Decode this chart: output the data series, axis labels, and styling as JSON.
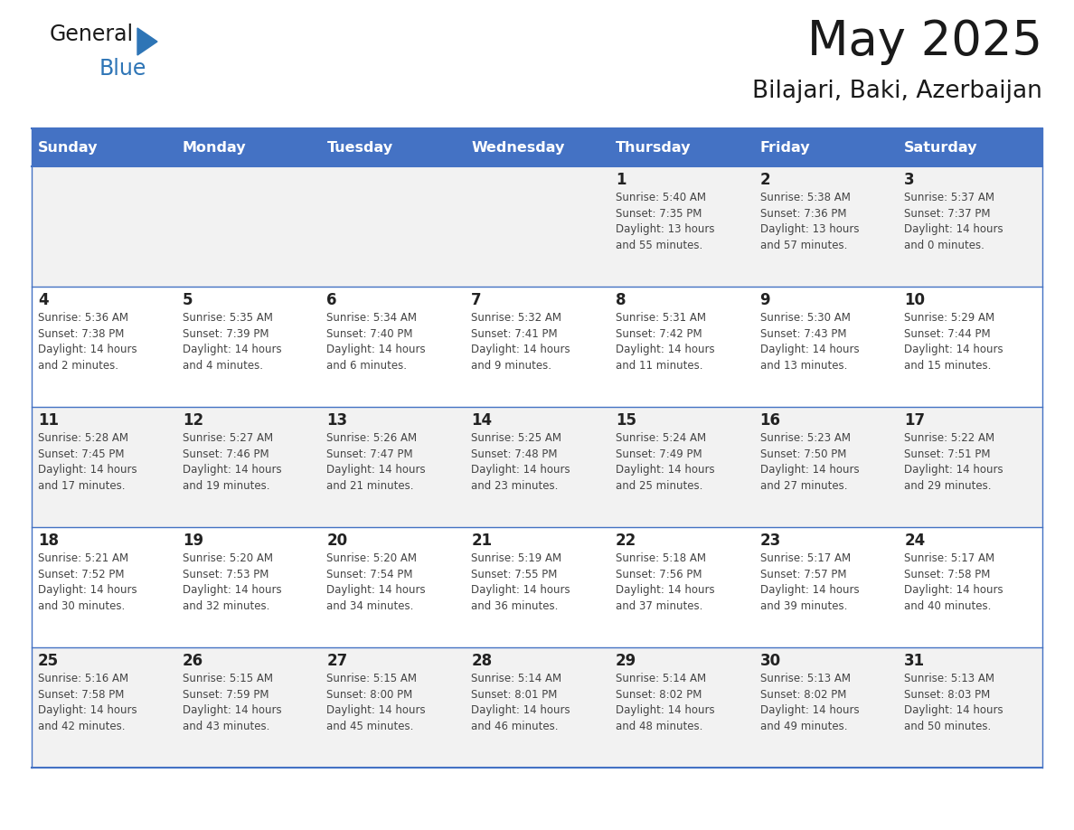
{
  "title": "May 2025",
  "subtitle": "Bilajari, Baki, Azerbaijan",
  "days_of_week": [
    "Sunday",
    "Monday",
    "Tuesday",
    "Wednesday",
    "Thursday",
    "Friday",
    "Saturday"
  ],
  "header_bg": "#4472C4",
  "header_text_color": "#FFFFFF",
  "cell_bg_odd": "#F2F2F2",
  "cell_bg_even": "#FFFFFF",
  "day_number_color": "#222222",
  "cell_text_color": "#444444",
  "grid_line_color": "#4472C4",
  "grid_line_color_inner": "#5A5A8A",
  "title_color": "#1a1a1a",
  "subtitle_color": "#1a1a1a",
  "logo_general_color": "#1a1a1a",
  "logo_blue_color": "#2E75B6",
  "logo_triangle_color": "#2E75B6",
  "calendar_data": [
    [
      {
        "day": "",
        "info": ""
      },
      {
        "day": "",
        "info": ""
      },
      {
        "day": "",
        "info": ""
      },
      {
        "day": "",
        "info": ""
      },
      {
        "day": "1",
        "info": "Sunrise: 5:40 AM\nSunset: 7:35 PM\nDaylight: 13 hours\nand 55 minutes."
      },
      {
        "day": "2",
        "info": "Sunrise: 5:38 AM\nSunset: 7:36 PM\nDaylight: 13 hours\nand 57 minutes."
      },
      {
        "day": "3",
        "info": "Sunrise: 5:37 AM\nSunset: 7:37 PM\nDaylight: 14 hours\nand 0 minutes."
      }
    ],
    [
      {
        "day": "4",
        "info": "Sunrise: 5:36 AM\nSunset: 7:38 PM\nDaylight: 14 hours\nand 2 minutes."
      },
      {
        "day": "5",
        "info": "Sunrise: 5:35 AM\nSunset: 7:39 PM\nDaylight: 14 hours\nand 4 minutes."
      },
      {
        "day": "6",
        "info": "Sunrise: 5:34 AM\nSunset: 7:40 PM\nDaylight: 14 hours\nand 6 minutes."
      },
      {
        "day": "7",
        "info": "Sunrise: 5:32 AM\nSunset: 7:41 PM\nDaylight: 14 hours\nand 9 minutes."
      },
      {
        "day": "8",
        "info": "Sunrise: 5:31 AM\nSunset: 7:42 PM\nDaylight: 14 hours\nand 11 minutes."
      },
      {
        "day": "9",
        "info": "Sunrise: 5:30 AM\nSunset: 7:43 PM\nDaylight: 14 hours\nand 13 minutes."
      },
      {
        "day": "10",
        "info": "Sunrise: 5:29 AM\nSunset: 7:44 PM\nDaylight: 14 hours\nand 15 minutes."
      }
    ],
    [
      {
        "day": "11",
        "info": "Sunrise: 5:28 AM\nSunset: 7:45 PM\nDaylight: 14 hours\nand 17 minutes."
      },
      {
        "day": "12",
        "info": "Sunrise: 5:27 AM\nSunset: 7:46 PM\nDaylight: 14 hours\nand 19 minutes."
      },
      {
        "day": "13",
        "info": "Sunrise: 5:26 AM\nSunset: 7:47 PM\nDaylight: 14 hours\nand 21 minutes."
      },
      {
        "day": "14",
        "info": "Sunrise: 5:25 AM\nSunset: 7:48 PM\nDaylight: 14 hours\nand 23 minutes."
      },
      {
        "day": "15",
        "info": "Sunrise: 5:24 AM\nSunset: 7:49 PM\nDaylight: 14 hours\nand 25 minutes."
      },
      {
        "day": "16",
        "info": "Sunrise: 5:23 AM\nSunset: 7:50 PM\nDaylight: 14 hours\nand 27 minutes."
      },
      {
        "day": "17",
        "info": "Sunrise: 5:22 AM\nSunset: 7:51 PM\nDaylight: 14 hours\nand 29 minutes."
      }
    ],
    [
      {
        "day": "18",
        "info": "Sunrise: 5:21 AM\nSunset: 7:52 PM\nDaylight: 14 hours\nand 30 minutes."
      },
      {
        "day": "19",
        "info": "Sunrise: 5:20 AM\nSunset: 7:53 PM\nDaylight: 14 hours\nand 32 minutes."
      },
      {
        "day": "20",
        "info": "Sunrise: 5:20 AM\nSunset: 7:54 PM\nDaylight: 14 hours\nand 34 minutes."
      },
      {
        "day": "21",
        "info": "Sunrise: 5:19 AM\nSunset: 7:55 PM\nDaylight: 14 hours\nand 36 minutes."
      },
      {
        "day": "22",
        "info": "Sunrise: 5:18 AM\nSunset: 7:56 PM\nDaylight: 14 hours\nand 37 minutes."
      },
      {
        "day": "23",
        "info": "Sunrise: 5:17 AM\nSunset: 7:57 PM\nDaylight: 14 hours\nand 39 minutes."
      },
      {
        "day": "24",
        "info": "Sunrise: 5:17 AM\nSunset: 7:58 PM\nDaylight: 14 hours\nand 40 minutes."
      }
    ],
    [
      {
        "day": "25",
        "info": "Sunrise: 5:16 AM\nSunset: 7:58 PM\nDaylight: 14 hours\nand 42 minutes."
      },
      {
        "day": "26",
        "info": "Sunrise: 5:15 AM\nSunset: 7:59 PM\nDaylight: 14 hours\nand 43 minutes."
      },
      {
        "day": "27",
        "info": "Sunrise: 5:15 AM\nSunset: 8:00 PM\nDaylight: 14 hours\nand 45 minutes."
      },
      {
        "day": "28",
        "info": "Sunrise: 5:14 AM\nSunset: 8:01 PM\nDaylight: 14 hours\nand 46 minutes."
      },
      {
        "day": "29",
        "info": "Sunrise: 5:14 AM\nSunset: 8:02 PM\nDaylight: 14 hours\nand 48 minutes."
      },
      {
        "day": "30",
        "info": "Sunrise: 5:13 AM\nSunset: 8:02 PM\nDaylight: 14 hours\nand 49 minutes."
      },
      {
        "day": "31",
        "info": "Sunrise: 5:13 AM\nSunset: 8:03 PM\nDaylight: 14 hours\nand 50 minutes."
      }
    ]
  ]
}
